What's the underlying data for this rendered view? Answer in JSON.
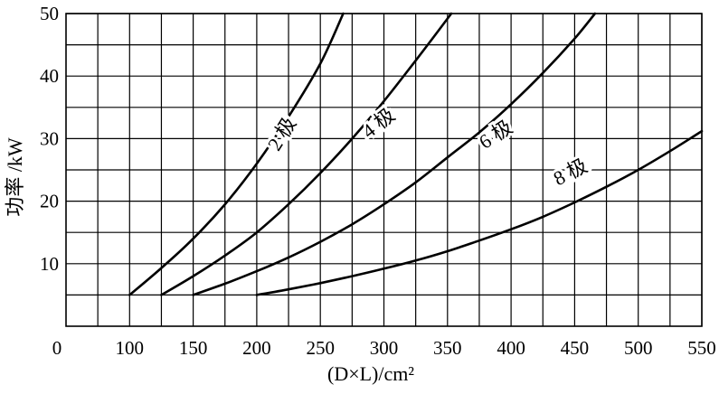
{
  "chart_data": {
    "type": "line",
    "title": "",
    "xlabel": "(D×L)/cm²",
    "ylabel": "功率 /kW",
    "x_origin_label": "0",
    "xlim": [
      50,
      550
    ],
    "ylim": [
      0,
      50
    ],
    "x_ticks": [
      100,
      150,
      200,
      250,
      300,
      350,
      400,
      450,
      500,
      550
    ],
    "x_tick_labels": [
      "100",
      "150",
      "200",
      "250",
      "300",
      "350",
      "400",
      "450",
      "500",
      "550"
    ],
    "y_ticks": [
      10,
      20,
      30,
      40,
      50
    ],
    "y_tick_labels": [
      "10",
      "20",
      "30",
      "40",
      "50"
    ],
    "x_grid": [
      75,
      100,
      125,
      150,
      175,
      200,
      225,
      250,
      275,
      300,
      325,
      350,
      375,
      400,
      425,
      450,
      475,
      500,
      525,
      550
    ],
    "y_grid": [
      5,
      10,
      15,
      20,
      25,
      30,
      35,
      40,
      45,
      50
    ],
    "grid": true,
    "legend": "none",
    "series": [
      {
        "name": "2 极",
        "points": [
          [
            100,
            5
          ],
          [
            125,
            9.3
          ],
          [
            150,
            14
          ],
          [
            175,
            19.5
          ],
          [
            200,
            26
          ],
          [
            225,
            33.5
          ],
          [
            250,
            42
          ],
          [
            268,
            50
          ]
        ]
      },
      {
        "name": "4 极",
        "points": [
          [
            125,
            5
          ],
          [
            150,
            8
          ],
          [
            175,
            11.3
          ],
          [
            200,
            15
          ],
          [
            225,
            19.5
          ],
          [
            250,
            24.5
          ],
          [
            275,
            30
          ],
          [
            300,
            36
          ],
          [
            325,
            42.5
          ],
          [
            353,
            50
          ]
        ]
      },
      {
        "name": "6 极",
        "points": [
          [
            150,
            5
          ],
          [
            175,
            6.8
          ],
          [
            200,
            8.8
          ],
          [
            225,
            11
          ],
          [
            250,
            13.5
          ],
          [
            275,
            16.3
          ],
          [
            300,
            19.5
          ],
          [
            325,
            23
          ],
          [
            350,
            27
          ],
          [
            375,
            31
          ],
          [
            400,
            35.5
          ],
          [
            425,
            40.5
          ],
          [
            450,
            46
          ],
          [
            466,
            50
          ]
        ]
      },
      {
        "name": "8 极",
        "points": [
          [
            200,
            5
          ],
          [
            225,
            5.9
          ],
          [
            250,
            6.9
          ],
          [
            275,
            8
          ],
          [
            300,
            9.2
          ],
          [
            325,
            10.5
          ],
          [
            350,
            12
          ],
          [
            375,
            13.7
          ],
          [
            400,
            15.5
          ],
          [
            425,
            17.5
          ],
          [
            450,
            19.8
          ],
          [
            475,
            22.3
          ],
          [
            500,
            25
          ],
          [
            525,
            28
          ],
          [
            550,
            31.2
          ]
        ]
      }
    ]
  }
}
